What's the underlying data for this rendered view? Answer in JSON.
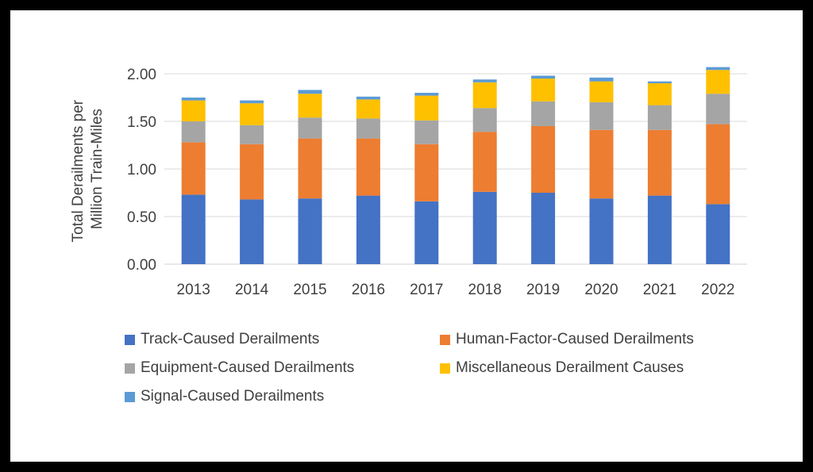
{
  "chart_data": {
    "type": "bar",
    "stacked": true,
    "title": "",
    "xlabel": "",
    "ylabel_lines": [
      "Total Derailments per",
      "Million Train-Miles"
    ],
    "ylim": [
      0,
      2.0
    ],
    "yticks": [
      "0.00",
      "0.50",
      "1.00",
      "1.50",
      "2.00"
    ],
    "ytick_values": [
      0,
      0.5,
      1.0,
      1.5,
      2.0
    ],
    "grid": true,
    "legend_position": "bottom",
    "categories": [
      "2013",
      "2014",
      "2015",
      "2016",
      "2017",
      "2018",
      "2019",
      "2020",
      "2021",
      "2022"
    ],
    "series": [
      {
        "name": "Track-Caused Derailments",
        "color": "#4472C4",
        "values": [
          0.73,
          0.68,
          0.69,
          0.72,
          0.66,
          0.76,
          0.75,
          0.69,
          0.72,
          0.63
        ]
      },
      {
        "name": "Human-Factor-Caused Derailments",
        "color": "#ED7D31",
        "values": [
          0.55,
          0.58,
          0.63,
          0.6,
          0.6,
          0.63,
          0.7,
          0.72,
          0.69,
          0.84
        ]
      },
      {
        "name": "Equipment-Caused Derailments",
        "color": "#A5A5A5",
        "values": [
          0.22,
          0.2,
          0.22,
          0.21,
          0.25,
          0.25,
          0.26,
          0.29,
          0.26,
          0.32
        ]
      },
      {
        "name": "Miscellaneous Derailment Causes",
        "color": "#FFC000",
        "values": [
          0.22,
          0.23,
          0.25,
          0.2,
          0.26,
          0.27,
          0.24,
          0.22,
          0.23,
          0.25
        ]
      },
      {
        "name": "Signal-Caused Derailments",
        "color": "#5B9BD5",
        "values": [
          0.03,
          0.03,
          0.04,
          0.03,
          0.03,
          0.03,
          0.03,
          0.04,
          0.02,
          0.03
        ]
      }
    ]
  }
}
